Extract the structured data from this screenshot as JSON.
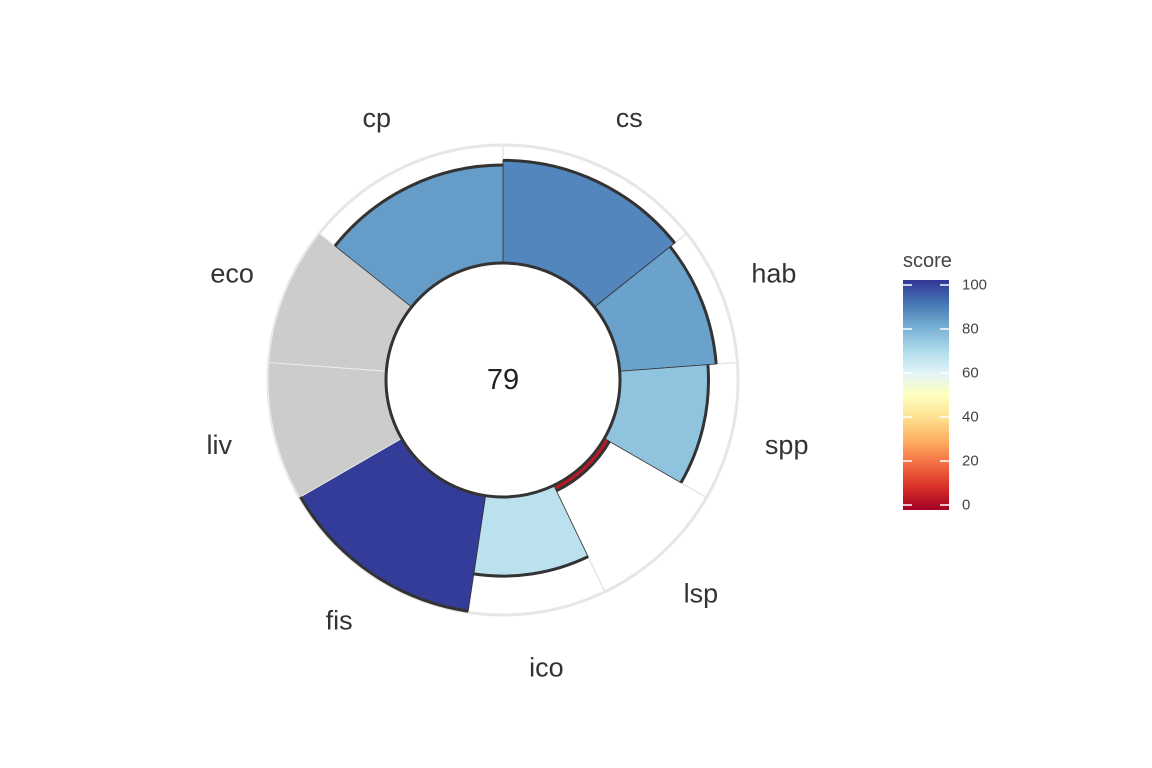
{
  "chart_data": {
    "type": "pie",
    "center_score": "79",
    "segments": [
      {
        "label": "cs",
        "score": 87,
        "weight": 1.5
      },
      {
        "label": "hab",
        "score": 82,
        "weight": 1
      },
      {
        "label": "spp",
        "score": 75,
        "weight": 1
      },
      {
        "label": "lsp",
        "score": 5,
        "weight": 1
      },
      {
        "label": "ico",
        "score": 67,
        "weight": 1
      },
      {
        "label": "fis",
        "score": 99,
        "weight": 1.5
      },
      {
        "label": "liv",
        "score": null,
        "weight": 1
      },
      {
        "label": "eco",
        "score": null,
        "weight": 1
      },
      {
        "label": "cp",
        "score": 83,
        "weight": 1.5
      }
    ],
    "na_color": "#cccccc",
    "score_max": 100,
    "legend": {
      "title": "score",
      "ticks": [
        "0",
        "20",
        "40",
        "60",
        "80",
        "100"
      ],
      "tick_values": [
        0,
        20,
        40,
        60,
        80,
        100
      ],
      "range": [
        0,
        100
      ]
    },
    "color_scale": [
      "#a50026",
      "#d73027",
      "#f46d43",
      "#fdae61",
      "#fee090",
      "#ffffbf",
      "#e0f3f8",
      "#abd9e9",
      "#74add1",
      "#4575b4",
      "#313695"
    ],
    "grid": true,
    "legend_placement": "right"
  }
}
